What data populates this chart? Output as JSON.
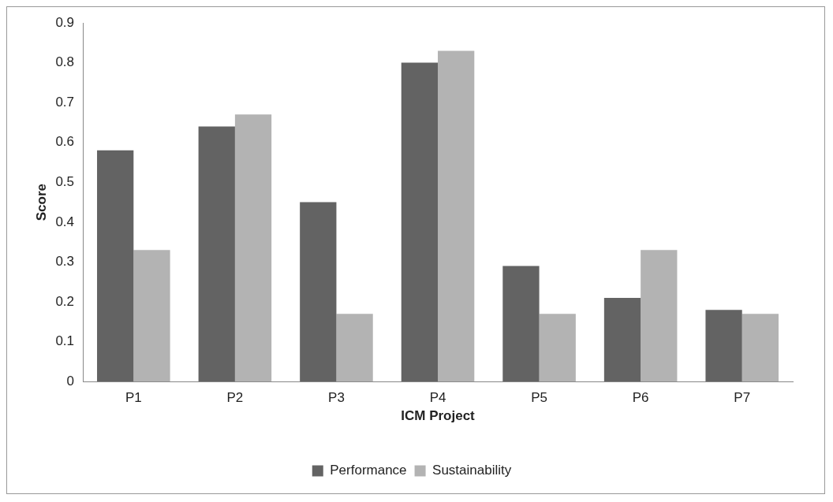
{
  "chart_data": {
    "type": "bar",
    "xlabel": "ICM Project",
    "ylabel": "Score",
    "categories": [
      "P1",
      "P2",
      "P3",
      "P4",
      "P5",
      "P6",
      "P7"
    ],
    "series": [
      {
        "name": "Performance",
        "color": "#636363",
        "values": [
          0.58,
          0.64,
          0.45,
          0.8,
          0.29,
          0.21,
          0.18
        ]
      },
      {
        "name": "Sustainability",
        "color": "#b3b3b3",
        "values": [
          0.33,
          0.67,
          0.17,
          0.83,
          0.17,
          0.33,
          0.17
        ]
      }
    ],
    "ylim": [
      0,
      0.9
    ],
    "yticks": [
      0,
      0.1,
      0.2,
      0.3,
      0.4,
      0.5,
      0.6,
      0.7,
      0.8,
      0.9
    ],
    "grid": false,
    "legend": "bottom"
  }
}
